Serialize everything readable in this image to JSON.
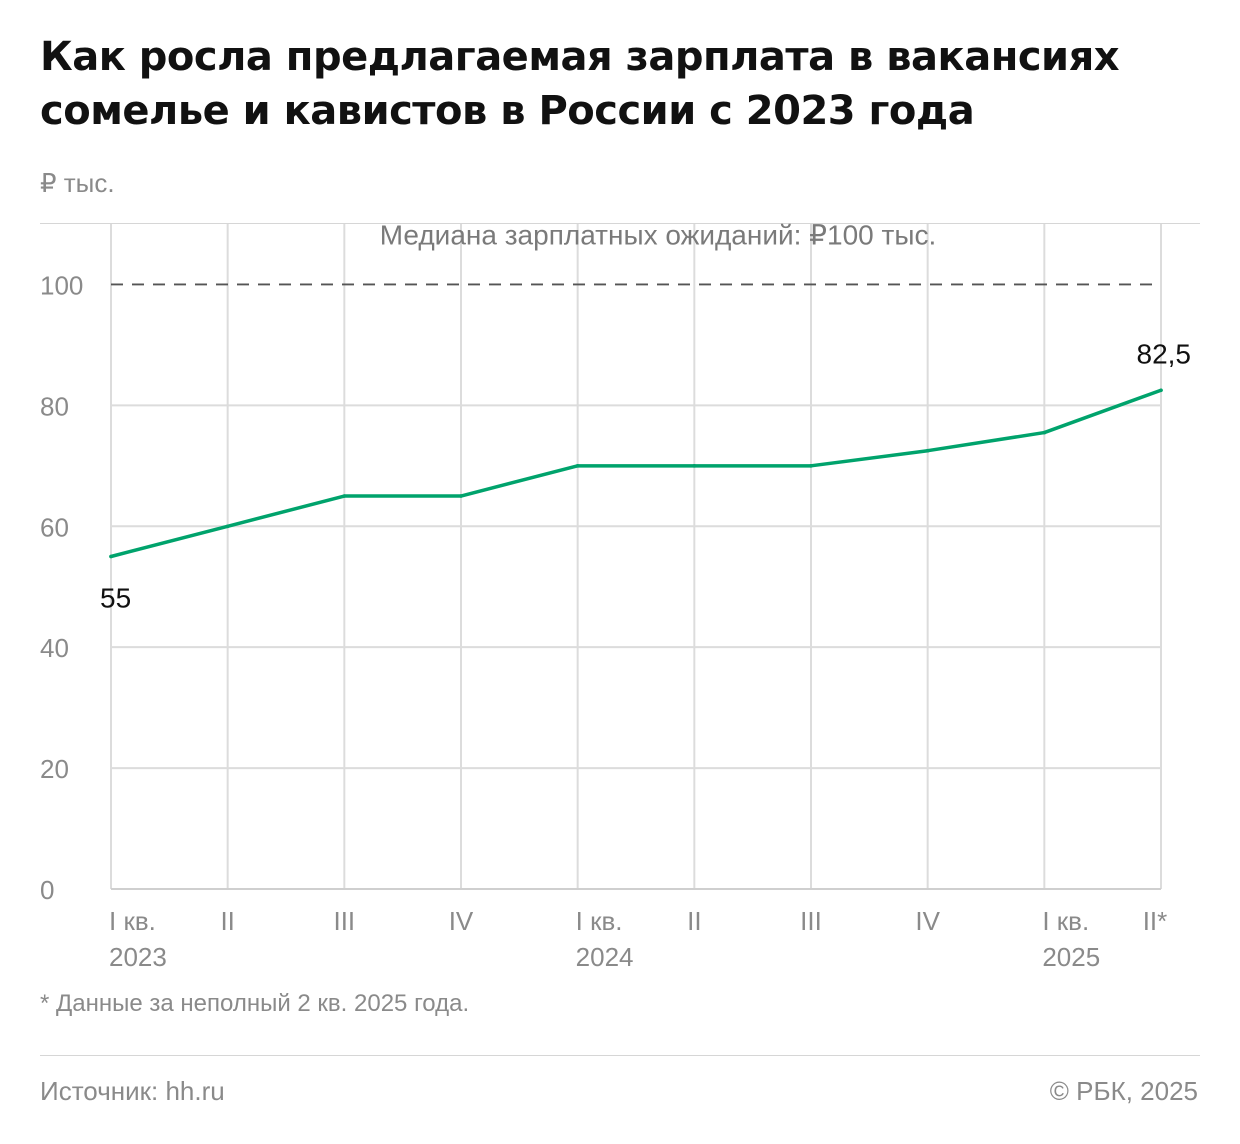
{
  "header": {
    "title": "Как росла предлагаемая зарплата в вакансиях сомелье и кавистов в России с 2023 года",
    "unit": "₽ тыс."
  },
  "chart_data": {
    "type": "line",
    "x": [
      "I кв. 2023",
      "II",
      "III",
      "IV",
      "I кв. 2024",
      "II",
      "III",
      "IV",
      "I кв. 2025",
      "II*"
    ],
    "x_tick_lines": [
      [
        "I кв.",
        "2023"
      ],
      [
        "II"
      ],
      [
        "III"
      ],
      [
        "IV"
      ],
      [
        "I кв.",
        "2024"
      ],
      [
        "II"
      ],
      [
        "III"
      ],
      [
        "IV"
      ],
      [
        "I кв.",
        "2025"
      ],
      [
        "II*"
      ]
    ],
    "series": [
      {
        "values": [
          55,
          60,
          65,
          65,
          70,
          70,
          70,
          72.5,
          75.5,
          82.5
        ],
        "color": "#00a36c"
      }
    ],
    "ylim": [
      0,
      110
    ],
    "yticks": [
      0,
      20,
      40,
      60,
      80,
      100
    ],
    "grid": true,
    "reference_line": {
      "value": 100,
      "label": "Медиана зарплатных ожиданий: ₽100 тыс."
    },
    "annotations": [
      {
        "index": 0,
        "text": "55"
      },
      {
        "index": 9,
        "text": "82,5"
      }
    ]
  },
  "footer": {
    "footnote": "* Данные за неполный 2 кв. 2025 года.",
    "source": "Источник: hh.ru",
    "copyright": "© РБК, 2025"
  }
}
